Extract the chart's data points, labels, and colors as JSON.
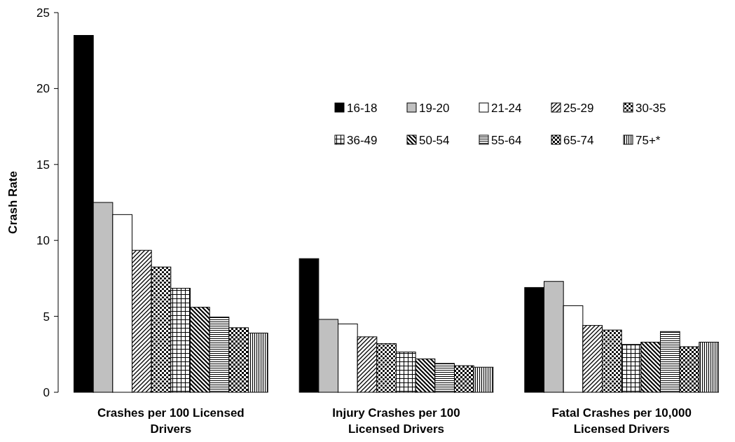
{
  "chart_data": {
    "type": "bar",
    "ylabel": "Crash Rate",
    "categories": [
      "Crashes per 100 Licensed Drivers",
      "Injury Crashes per 100 Licensed Drivers",
      "Fatal Crashes per 10,000 Licensed Drivers"
    ],
    "series": [
      {
        "name": "16-18",
        "color": "#000000",
        "values": [
          23.5,
          8.8,
          6.9
        ]
      },
      {
        "name": "19-20",
        "color": "#c0c0c0",
        "values": [
          12.5,
          4.8,
          7.3
        ]
      },
      {
        "name": "21-24",
        "color": "#ffffff",
        "values": [
          11.7,
          4.5,
          5.7
        ]
      },
      {
        "name": "25-29",
        "color": "#000000",
        "values": [
          9.35,
          3.65,
          4.4
        ]
      },
      {
        "name": "30-35",
        "color": "#000000",
        "values": [
          8.25,
          3.2,
          4.1
        ]
      },
      {
        "name": "36-49",
        "color": "#000000",
        "values": [
          6.85,
          2.65,
          3.15
        ]
      },
      {
        "name": "50-54",
        "color": "#000000",
        "values": [
          5.6,
          2.2,
          3.3
        ]
      },
      {
        "name": "55-64",
        "color": "#000000",
        "values": [
          4.95,
          1.9,
          4.0
        ]
      },
      {
        "name": "65-74",
        "color": "#000000",
        "values": [
          4.25,
          1.75,
          3.0
        ]
      },
      {
        "name": "75+*",
        "color": "#000000",
        "values": [
          3.9,
          1.65,
          3.3
        ]
      }
    ],
    "ylim": [
      0,
      25
    ],
    "yticks": [
      0,
      5,
      10,
      15,
      20,
      25
    ],
    "legend": "top right"
  }
}
